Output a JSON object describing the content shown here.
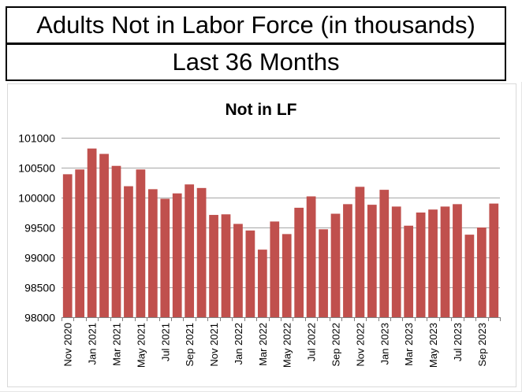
{
  "header": {
    "title": "Adults Not in Labor Force (in thousands)",
    "subtitle": "Last 36 Months"
  },
  "colors": {
    "bar": "#c0504d",
    "gridline": "#a6a6a6",
    "axis": "#808080",
    "text": "#000000"
  },
  "chart_data": {
    "type": "bar",
    "title": "Not in LF",
    "xlabel": "",
    "ylabel": "",
    "ylim": [
      98000,
      101000
    ],
    "yticks": [
      98000,
      98500,
      99000,
      99500,
      100000,
      100500,
      101000
    ],
    "grid": true,
    "legend": "none",
    "categories": [
      "Nov 2020",
      "Dec 2020",
      "Jan 2021",
      "Feb 2021",
      "Mar 2021",
      "Apr 2021",
      "May 2021",
      "Jun 2021",
      "Jul 2021",
      "Aug 2021",
      "Sep 2021",
      "Oct 2021",
      "Nov 2021",
      "Dec 2021",
      "Jan 2022",
      "Feb 2022",
      "Mar 2022",
      "Apr 2022",
      "May 2022",
      "Jun 2022",
      "Jul 2022",
      "Aug 2022",
      "Sep 2022",
      "Oct 2022",
      "Nov 2022",
      "Dec 2022",
      "Jan 2023",
      "Feb 2023",
      "Mar 2023",
      "Apr 2023",
      "May 2023",
      "Jun 2023",
      "Jul 2023",
      "Aug 2023",
      "Sep 2023",
      "Oct 2023"
    ],
    "tick_labels_shown": [
      "Nov 2020",
      "Jan 2021",
      "Mar 2021",
      "May 2021",
      "Jul 2021",
      "Sep 2021",
      "Nov 2021",
      "Jan 2022",
      "Mar 2022",
      "May 2022",
      "Jul 2022",
      "Sep 2022",
      "Nov 2022",
      "Jan 2023",
      "Mar 2023",
      "May 2023",
      "Jul 2023",
      "Sep 2023"
    ],
    "values": [
      100390,
      100470,
      100820,
      100730,
      100530,
      100190,
      100470,
      100140,
      99980,
      100070,
      100220,
      100160,
      99710,
      99720,
      99560,
      99450,
      99130,
      99600,
      99390,
      99830,
      100020,
      99470,
      99730,
      99890,
      100180,
      99880,
      100130,
      99850,
      99530,
      99750,
      99800,
      99850,
      99890,
      99380,
      99500,
      99900
    ]
  }
}
